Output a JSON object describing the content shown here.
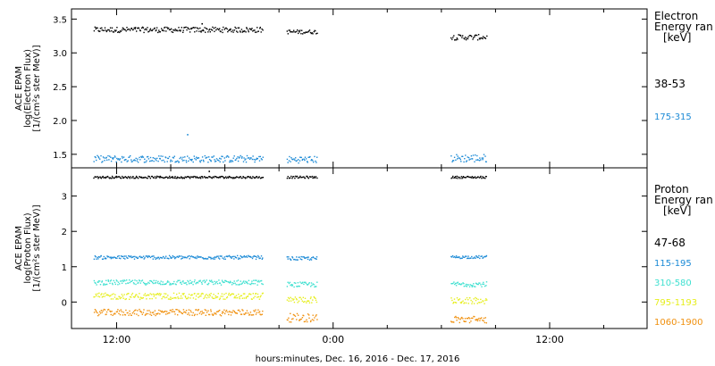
{
  "chart_data": [
    {
      "type": "scatter",
      "ylabel_lines": [
        "ACE EPAM",
        "log(Electron Flux)",
        "[1/(cm²s ster MeV)]"
      ],
      "ylim": [
        1.3,
        3.65
      ],
      "yticks": [
        "1.5",
        "2.0",
        "2.5",
        "3.0",
        "3.5"
      ],
      "ytick_values": [
        1.5,
        2.0,
        2.5,
        3.0,
        3.5
      ],
      "legend": {
        "title_lines": [
          "Electron",
          "Energy ran",
          "[keV]"
        ],
        "entries": [
          "38-53",
          "175-315"
        ]
      },
      "series": [
        {
          "name": "38-53",
          "color": "#000000",
          "segments": [
            {
              "x": [
                10.7,
                20.1
              ],
              "base": 3.35,
              "noise": 0.04
            },
            {
              "x": [
                21.4,
                23.1
              ],
              "base": 3.32,
              "noise": 0.03
            },
            {
              "x": [
                30.5,
                32.5
              ],
              "base": 3.24,
              "noise": 0.04
            }
          ],
          "outliers": [
            {
              "x": 16.7,
              "y": 3.44
            }
          ]
        },
        {
          "name": "175-315",
          "color": "#1c8ad6",
          "segments": [
            {
              "x": [
                10.7,
                20.1
              ],
              "base": 1.44,
              "noise": 0.05
            },
            {
              "x": [
                21.4,
                23.1
              ],
              "base": 1.43,
              "noise": 0.05
            },
            {
              "x": [
                30.5,
                32.5
              ],
              "base": 1.45,
              "noise": 0.06
            }
          ],
          "outliers": [
            {
              "x": 15.9,
              "y": 1.8
            }
          ]
        }
      ]
    },
    {
      "type": "scatter",
      "ylabel_lines": [
        "ACE EPAM",
        "log(Proton Flux)",
        "[1/(cm²s ster MeV)]"
      ],
      "ylim": [
        -0.75,
        3.8
      ],
      "yticks": [
        "0",
        "1",
        "2",
        "3"
      ],
      "ytick_values": [
        0,
        1,
        2,
        3
      ],
      "legend": {
        "title_lines": [
          "Proton",
          "Energy ran",
          "[keV]"
        ],
        "entries": [
          "47-68",
          "115-195",
          "310-580",
          "795-1193",
          "1060-1900"
        ]
      },
      "series": [
        {
          "name": "47-68",
          "color": "#000000",
          "segments": [
            {
              "x": [
                10.7,
                20.1
              ],
              "base": 3.55,
              "noise": 0.03
            },
            {
              "x": [
                21.4,
                23.1
              ],
              "base": 3.55,
              "noise": 0.03
            },
            {
              "x": [
                30.5,
                32.5
              ],
              "base": 3.55,
              "noise": 0.03
            }
          ],
          "outliers": [
            {
              "x": 17.1,
              "y": 3.72
            }
          ]
        },
        {
          "name": "115-195",
          "color": "#1c8ad6",
          "segments": [
            {
              "x": [
                10.7,
                20.1
              ],
              "base": 1.28,
              "noise": 0.05
            },
            {
              "x": [
                21.4,
                23.1
              ],
              "base": 1.25,
              "noise": 0.05
            },
            {
              "x": [
                30.5,
                32.5
              ],
              "base": 1.29,
              "noise": 0.04
            }
          ],
          "outliers": []
        },
        {
          "name": "310-580",
          "color": "#3fe0d0",
          "segments": [
            {
              "x": [
                10.7,
                20.1
              ],
              "base": 0.57,
              "noise": 0.07
            },
            {
              "x": [
                21.4,
                23.1
              ],
              "base": 0.51,
              "noise": 0.07
            },
            {
              "x": [
                30.5,
                32.5
              ],
              "base": 0.52,
              "noise": 0.07
            }
          ],
          "outliers": []
        },
        {
          "name": "795-1193",
          "color": "#e6ee1c",
          "segments": [
            {
              "x": [
                10.7,
                20.1
              ],
              "base": 0.18,
              "noise": 0.09
            },
            {
              "x": [
                21.4,
                23.1
              ],
              "base": 0.08,
              "noise": 0.09
            },
            {
              "x": [
                30.5,
                32.5
              ],
              "base": 0.05,
              "noise": 0.09
            }
          ],
          "outliers": []
        },
        {
          "name": "1060-1900",
          "color": "#f0900e",
          "segments": [
            {
              "x": [
                10.7,
                20.1
              ],
              "base": -0.28,
              "noise": 0.09
            },
            {
              "x": [
                21.4,
                23.1
              ],
              "base": -0.43,
              "noise": 0.12
            },
            {
              "x": [
                30.5,
                32.5
              ],
              "base": -0.48,
              "noise": 0.1
            }
          ],
          "outliers": []
        }
      ]
    }
  ],
  "xaxis": {
    "label": "hours:minutes, Dec. 16, 2016 - Dec. 17, 2016",
    "xlim_hours": [
      9.5,
      41.4
    ],
    "ticks": [
      {
        "label": "12:00",
        "hours": 12
      },
      {
        "label": "0:00",
        "hours": 24
      },
      {
        "label": "12:00",
        "hours": 36
      }
    ],
    "minor_step_hours": 3
  }
}
